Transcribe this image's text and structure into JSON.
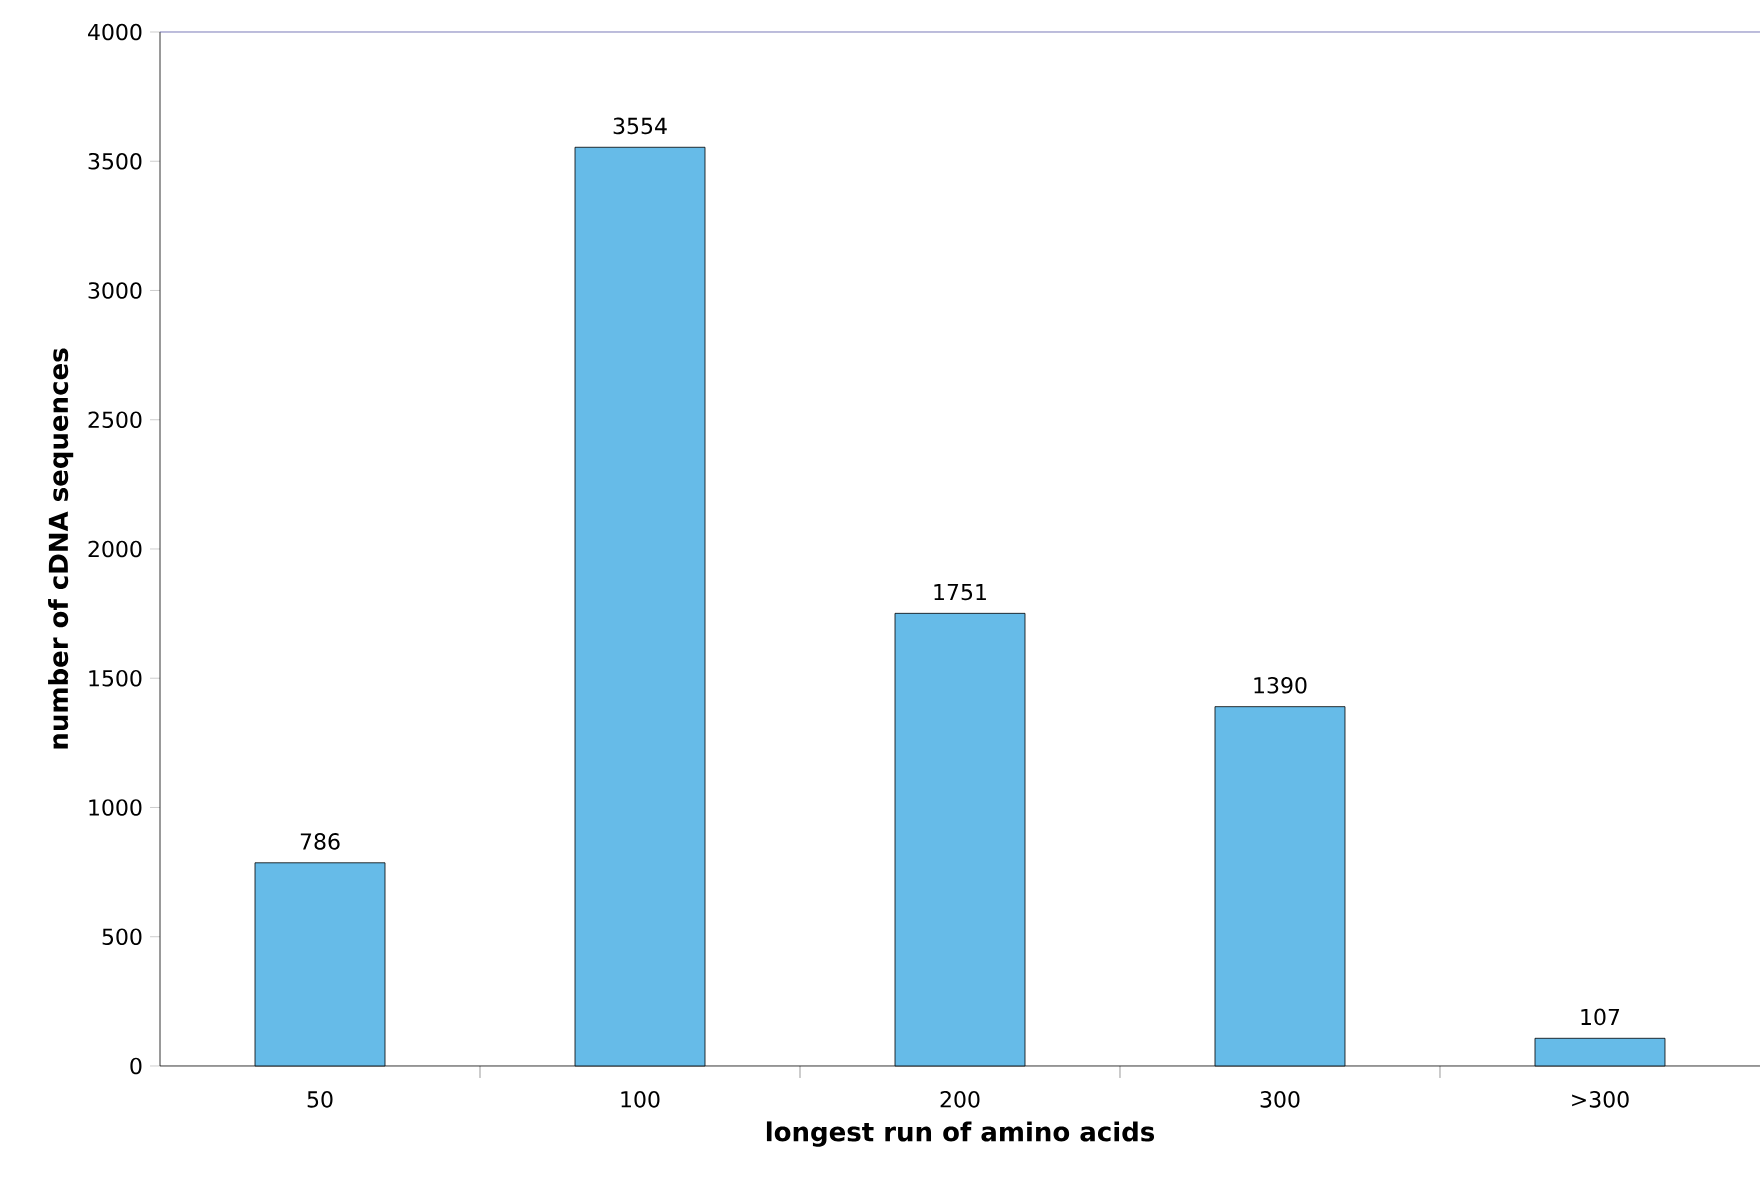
{
  "chart_data": {
    "type": "bar",
    "xlabel": "longest run of amino acids",
    "ylabel": "number of cDNA sequences",
    "categories": [
      "50",
      "100",
      "200",
      "300",
      ">300"
    ],
    "values": [
      786,
      3554,
      1751,
      1390,
      107
    ],
    "color": "#66bbe8",
    "ylim": [
      0,
      4000
    ],
    "yticks": [
      0,
      500,
      1000,
      1500,
      2000,
      2500,
      3000,
      3500,
      4000
    ],
    "data_labels": true
  }
}
